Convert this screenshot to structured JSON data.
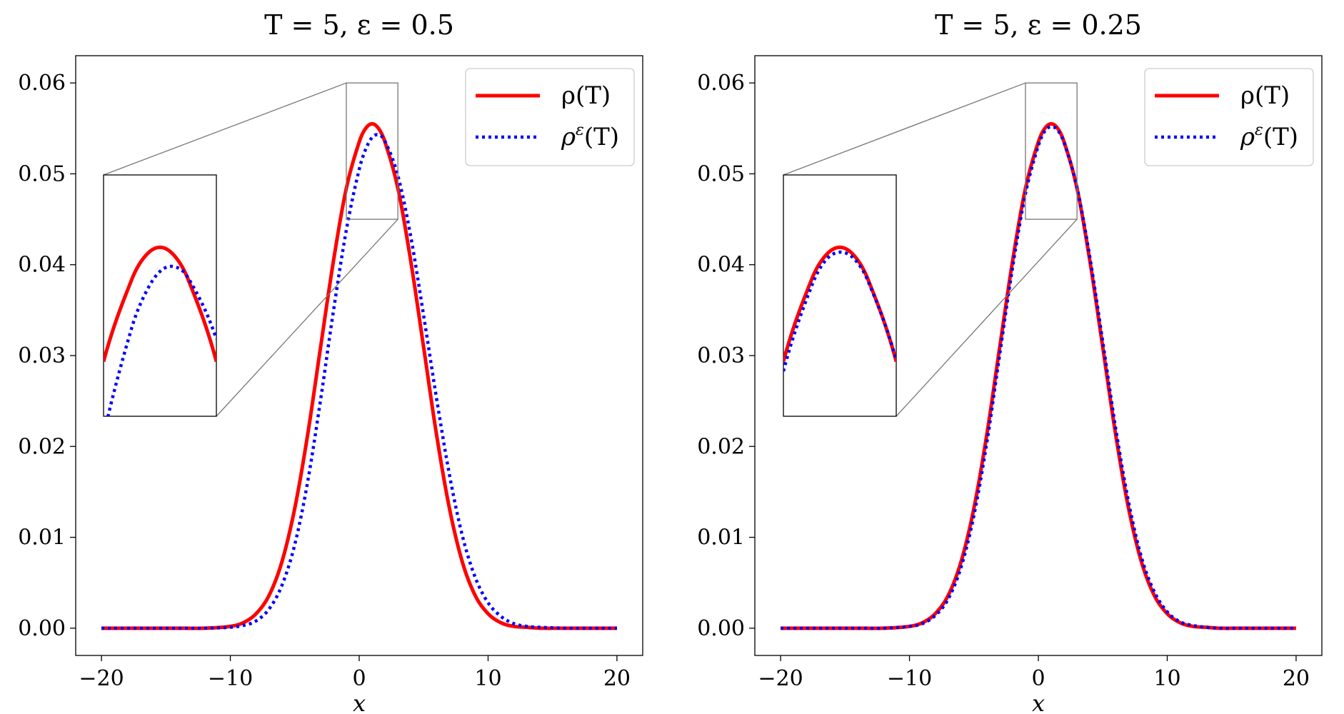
{
  "chart_data": [
    {
      "type": "line",
      "title": "T = 5, ε = 0.5",
      "xlabel": "x",
      "ylabel": "",
      "xlim": [
        -22,
        22
      ],
      "ylim": [
        -0.003,
        0.063
      ],
      "xticks": [
        -20,
        -10,
        0,
        10,
        20
      ],
      "xtick_labels": [
        "−20",
        "−10",
        "0",
        "10",
        "20"
      ],
      "yticks": [
        0.0,
        0.01,
        0.02,
        0.03,
        0.04,
        0.05,
        0.06
      ],
      "ytick_labels": [
        "0.00",
        "0.01",
        "0.02",
        "0.03",
        "0.04",
        "0.05",
        "0.06"
      ],
      "grid": false,
      "legend_position": "top-right",
      "series": [
        {
          "name": "ρ(T)",
          "color": "#ff0000",
          "style": "solid",
          "x": [
            -20,
            -16,
            -14,
            -12,
            -10,
            -9,
            -8,
            -7,
            -6,
            -5,
            -4,
            -3,
            -2,
            -1,
            0,
            0.5,
            1,
            1.5,
            2,
            3,
            4,
            5,
            6,
            7,
            8,
            9,
            10,
            11,
            12,
            13,
            14,
            16,
            18,
            20
          ],
          "y": [
            0.0,
            0.0,
            0.0,
            0.0,
            0.0002,
            0.0006,
            0.0016,
            0.0036,
            0.0073,
            0.0132,
            0.0213,
            0.0309,
            0.0404,
            0.0484,
            0.0535,
            0.055,
            0.0555,
            0.055,
            0.0535,
            0.0484,
            0.0404,
            0.0309,
            0.0213,
            0.0132,
            0.0073,
            0.0036,
            0.0016,
            0.0006,
            0.0002,
            0.0001,
            0.0,
            0.0,
            0.0,
            0.0
          ]
        },
        {
          "name": "ρ^ε(T)",
          "color": "#0000ff",
          "style": "dotted",
          "x": [
            -20,
            -16,
            -14,
            -12,
            -10,
            -9,
            -8,
            -7,
            -6,
            -5,
            -4,
            -3,
            -2,
            -1,
            0,
            0.5,
            1,
            1.5,
            2,
            3,
            4,
            5,
            6,
            7,
            8,
            9,
            10,
            11,
            12,
            13,
            14,
            16,
            18,
            20
          ],
          "y": [
            0.0,
            0.0,
            0.0,
            0.0,
            0.0001,
            0.0003,
            0.0008,
            0.0021,
            0.0047,
            0.0092,
            0.0161,
            0.0251,
            0.0349,
            0.0438,
            0.0505,
            0.0527,
            0.054,
            0.0543,
            0.0536,
            0.0498,
            0.0431,
            0.0344,
            0.0253,
            0.0169,
            0.0102,
            0.0056,
            0.0028,
            0.0013,
            0.0005,
            0.0002,
            0.0001,
            0.0,
            0.0,
            0.0
          ]
        }
      ],
      "inset": {
        "xlim": [
          -1,
          3
        ],
        "ylim": [
          0.045,
          0.06
        ]
      }
    },
    {
      "type": "line",
      "title": "T = 5, ε = 0.25",
      "xlabel": "x",
      "ylabel": "",
      "xlim": [
        -22,
        22
      ],
      "ylim": [
        -0.003,
        0.063
      ],
      "xticks": [
        -20,
        -10,
        0,
        10,
        20
      ],
      "xtick_labels": [
        "−20",
        "−10",
        "0",
        "10",
        "20"
      ],
      "yticks": [
        0.0,
        0.01,
        0.02,
        0.03,
        0.04,
        0.05,
        0.06
      ],
      "ytick_labels": [
        "0.00",
        "0.01",
        "0.02",
        "0.03",
        "0.04",
        "0.05",
        "0.06"
      ],
      "grid": false,
      "legend_position": "top-right",
      "series": [
        {
          "name": "ρ(T)",
          "color": "#ff0000",
          "style": "solid",
          "x": [
            -20,
            -16,
            -14,
            -12,
            -10,
            -9,
            -8,
            -7,
            -6,
            -5,
            -4,
            -3,
            -2,
            -1,
            0,
            0.5,
            1,
            1.5,
            2,
            3,
            4,
            5,
            6,
            7,
            8,
            9,
            10,
            11,
            12,
            13,
            14,
            16,
            18,
            20
          ],
          "y": [
            0.0,
            0.0,
            0.0,
            0.0,
            0.0002,
            0.0006,
            0.0016,
            0.0036,
            0.0073,
            0.0132,
            0.0213,
            0.0309,
            0.0404,
            0.0484,
            0.0535,
            0.055,
            0.0555,
            0.055,
            0.0535,
            0.0484,
            0.0404,
            0.0309,
            0.0213,
            0.0132,
            0.0073,
            0.0036,
            0.0016,
            0.0006,
            0.0002,
            0.0001,
            0.0,
            0.0,
            0.0,
            0.0
          ]
        },
        {
          "name": "ρ^ε(T)",
          "color": "#0000ff",
          "style": "dotted",
          "x": [
            -20,
            -16,
            -14,
            -12,
            -10,
            -9,
            -8,
            -7,
            -6,
            -5,
            -4,
            -3,
            -2,
            -1,
            0,
            0.5,
            1,
            1.5,
            2,
            3,
            4,
            5,
            6,
            7,
            8,
            9,
            10,
            11,
            12,
            13,
            14,
            16,
            18,
            20
          ],
          "y": [
            0.0,
            0.0,
            0.0,
            0.0,
            0.0002,
            0.0005,
            0.0014,
            0.0032,
            0.0067,
            0.0124,
            0.0204,
            0.0301,
            0.0397,
            0.0478,
            0.0531,
            0.0547,
            0.0552,
            0.0548,
            0.0534,
            0.0485,
            0.0408,
            0.0315,
            0.022,
            0.0139,
            0.0078,
            0.004,
            0.0018,
            0.0007,
            0.0003,
            0.0001,
            0.0,
            0.0,
            0.0,
            0.0
          ]
        }
      ],
      "inset": {
        "xlim": [
          -1,
          3
        ],
        "ylim": [
          0.045,
          0.06
        ]
      }
    }
  ]
}
